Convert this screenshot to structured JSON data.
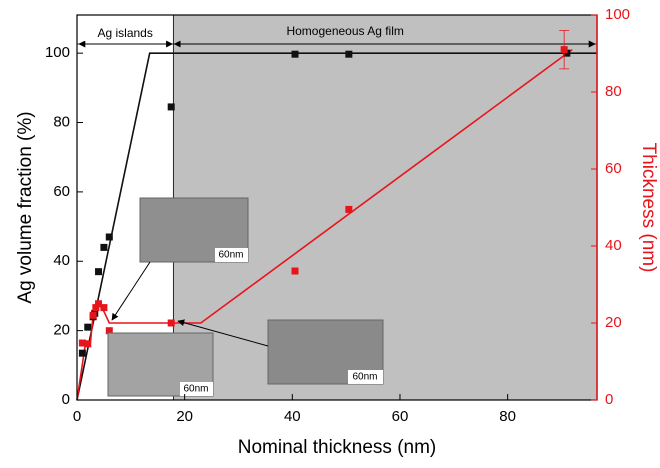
{
  "chart_data": {
    "type": "line",
    "xlabel": "Nominal thickness (nm)",
    "ylabel": "Ag volume fraction (%)",
    "y2label": "Thickness (nm)",
    "xlim": [
      0,
      96.6
    ],
    "xticks": [
      0,
      20,
      40,
      60,
      80
    ],
    "ylim": [
      0,
      111
    ],
    "yticks": [
      0,
      20,
      40,
      60,
      80,
      100
    ],
    "y2lim": [
      0,
      100
    ],
    "y2ticks": [
      0,
      20,
      40,
      60,
      80,
      100
    ],
    "y2color": "#e8141c",
    "shaded_from": 17.9,
    "shade_color": "#c0c0c0",
    "regions": [
      {
        "label": "Ag islands"
      },
      {
        "label": "Homogeneous Ag film"
      }
    ],
    "inset_labels": [
      "60nm",
      "60nm",
      "60nm"
    ],
    "series": [
      {
        "color": "#111111",
        "x": [
          1,
          2,
          3,
          3.3,
          4,
          5,
          6,
          17.5,
          40.5,
          50.5,
          91
        ],
        "values": [
          13.5,
          21,
          24,
          25,
          37,
          44,
          47,
          84.5,
          99.7,
          99.7,
          100
        ]
      },
      {
        "color": "#e8141c",
        "axis": "y2",
        "x": [
          1,
          2,
          3,
          3.5,
          4,
          5,
          6,
          17.5,
          40.5,
          50.5,
          90.5
        ],
        "values": [
          14.8,
          14.6,
          22,
          24,
          25,
          24,
          18,
          20,
          33.5,
          49.5,
          91
        ],
        "errors": [
          null,
          null,
          null,
          null,
          null,
          null,
          null,
          null,
          null,
          null,
          5
        ]
      }
    ],
    "lines": [
      {
        "color": "#111111",
        "x": [
          0,
          13.5,
          96.6
        ],
        "values": [
          0,
          100,
          100
        ]
      },
      {
        "color": "#e8141c",
        "axis": "y2",
        "x": [
          0,
          1.5,
          2.5,
          3,
          4,
          5,
          6,
          23,
          92
        ],
        "values": [
          0,
          14,
          15,
          22,
          25,
          23,
          20,
          20,
          91
        ]
      }
    ]
  }
}
